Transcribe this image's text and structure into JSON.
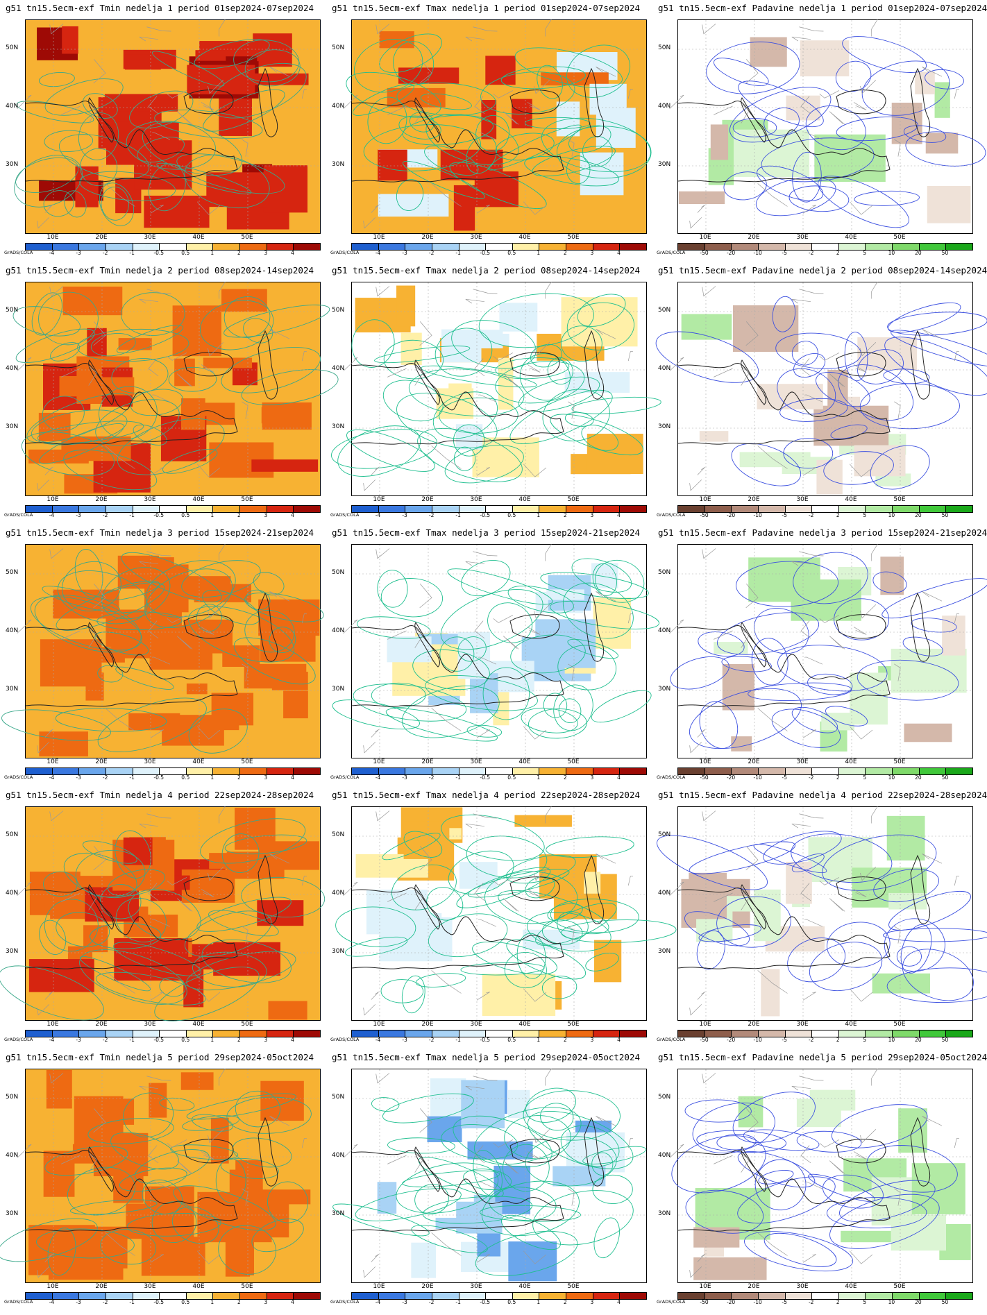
{
  "lat_labels": [
    "50N",
    "40N",
    "30N"
  ],
  "lon_labels": [
    "10E",
    "20E",
    "30E",
    "40E",
    "50E"
  ],
  "grads_label": "GrADS/COLA",
  "temp_scale": {
    "labels": [
      "-4",
      "-3",
      "-2",
      "-1",
      "-0.5",
      "0.5",
      "1",
      "2",
      "3",
      "4"
    ],
    "colors": [
      "#1e5fd0",
      "#3a78e0",
      "#6aa6ec",
      "#a9d3f5",
      "#dff2fb",
      "#ffffff",
      "#fff0a8",
      "#f7b233",
      "#ee6a12",
      "#d62510",
      "#9e0a05"
    ]
  },
  "precip_scale": {
    "labels": [
      "-50",
      "-20",
      "-10",
      "-5",
      "-2",
      "2",
      "5",
      "10",
      "20",
      "50"
    ],
    "colors": [
      "#6a4030",
      "#8e5e4c",
      "#b28a7a",
      "#d4b8aa",
      "#efe2d8",
      "#ffffff",
      "#dcf5d4",
      "#b2eaa4",
      "#7fda6a",
      "#40c83a",
      "#1aa81a"
    ]
  },
  "rows": [
    {
      "tmin": "g51  tn15.5ecm-exf Tmin nedelja 1 period 01sep2024-07sep2024",
      "tmax": "g51  tn15.5ecm-exf Tmax nedelja 1 period 01sep2024-07sep2024",
      "prec": "g51  tn15.5ecm-exf Padavine nedelja 1 period 01sep2024-07sep2024"
    },
    {
      "tmin": "g51  tn15.5ecm-exf Tmin nedelja 2 period 08sep2024-14sep2024",
      "tmax": "g51  tn15.5ecm-exf Tmax nedelja 2 period 08sep2024-14sep2024",
      "prec": "g51  tn15.5ecm-exf Padavine nedelja 2 period 08sep2024-14sep2024"
    },
    {
      "tmin": "g51  tn15.5ecm-exf Tmin nedelja 3 period 15sep2024-21sep2024",
      "tmax": "g51  tn15.5ecm-exf Tmax nedelja 3 period 15sep2024-21sep2024",
      "prec": "g51  tn15.5ecm-exf Padavine nedelja 3 period 15sep2024-21sep2024"
    },
    {
      "tmin": "g51  tn15.5ecm-exf Tmin nedelja 4 period 22sep2024-28sep2024",
      "tmax": "g51  tn15.5ecm-exf Tmax nedelja 4 period 22sep2024-28sep2024",
      "prec": "g51  tn15.5ecm-exf Padavine nedelja 4 period 22sep2024-28sep2024"
    },
    {
      "tmin": "g51  tn15.5ecm-exf Tmin nedelja 5 period 29sep2024-05oct2024",
      "tmax": "g51  tn15.5ecm-exf Tmax nedelja 5 period 29sep2024-05oct2024",
      "prec": "g51  tn15.5ecm-exf Padavine nedelja 5 period 29sep2024-05oct2024"
    }
  ]
}
